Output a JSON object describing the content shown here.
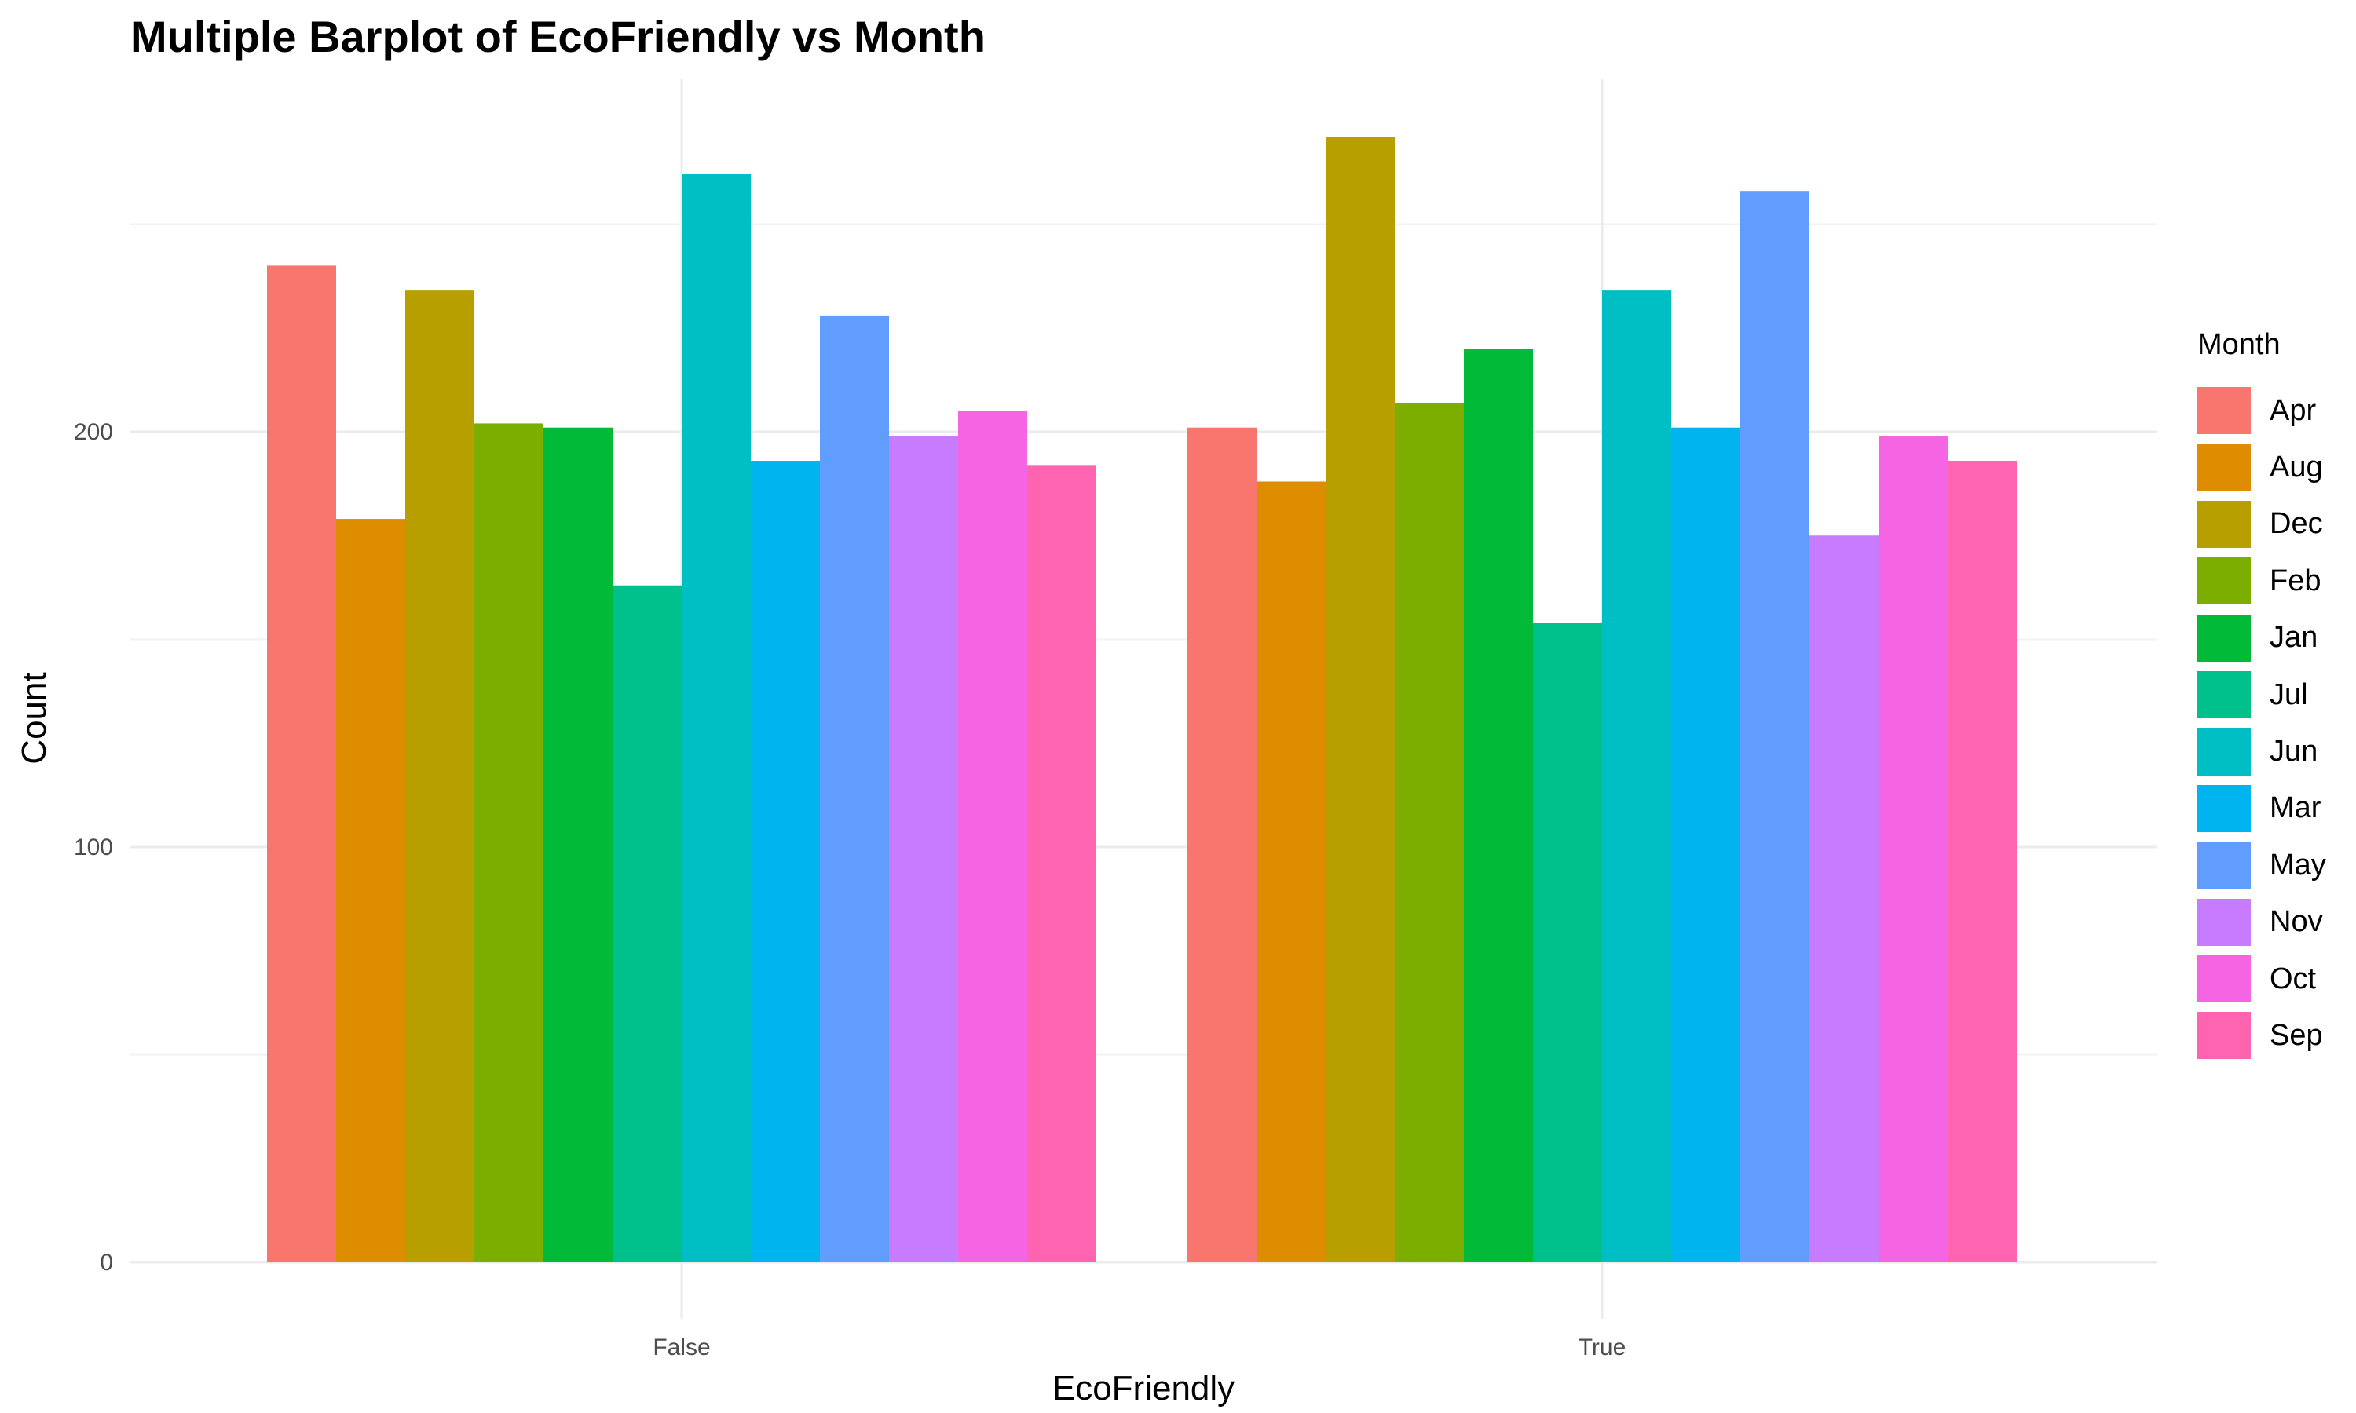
{
  "chart_data": {
    "type": "bar",
    "title": "Multiple Barplot of EcoFriendly vs Month",
    "xlabel": "EcoFriendly",
    "ylabel": "Count",
    "categories": [
      "False",
      "True"
    ],
    "ylim": [
      0,
      285
    ],
    "yticks": [
      0,
      100,
      200
    ],
    "grid": true,
    "legend": {
      "title": "Month",
      "position": "right"
    },
    "series": [
      {
        "name": "Apr",
        "color": "#F8766D",
        "values": [
          240,
          201
        ]
      },
      {
        "name": "Aug",
        "color": "#DE8C00",
        "values": [
          179,
          188
        ]
      },
      {
        "name": "Dec",
        "color": "#B79F00",
        "values": [
          234,
          271
        ]
      },
      {
        "name": "Feb",
        "color": "#7CAE00",
        "values": [
          202,
          207
        ]
      },
      {
        "name": "Jan",
        "color": "#00BA38",
        "values": [
          201,
          220
        ]
      },
      {
        "name": "Jul",
        "color": "#00C08B",
        "values": [
          163,
          154
        ]
      },
      {
        "name": "Jun",
        "color": "#00BFC4",
        "values": [
          262,
          234
        ]
      },
      {
        "name": "Mar",
        "color": "#00B4F0",
        "values": [
          193,
          201
        ]
      },
      {
        "name": "May",
        "color": "#619CFF",
        "values": [
          228,
          258
        ]
      },
      {
        "name": "Nov",
        "color": "#C77CFF",
        "values": [
          199,
          175
        ]
      },
      {
        "name": "Oct",
        "color": "#F564E3",
        "values": [
          205,
          199
        ]
      },
      {
        "name": "Sep",
        "color": "#FF64B0",
        "values": [
          192,
          193
        ]
      }
    ]
  }
}
